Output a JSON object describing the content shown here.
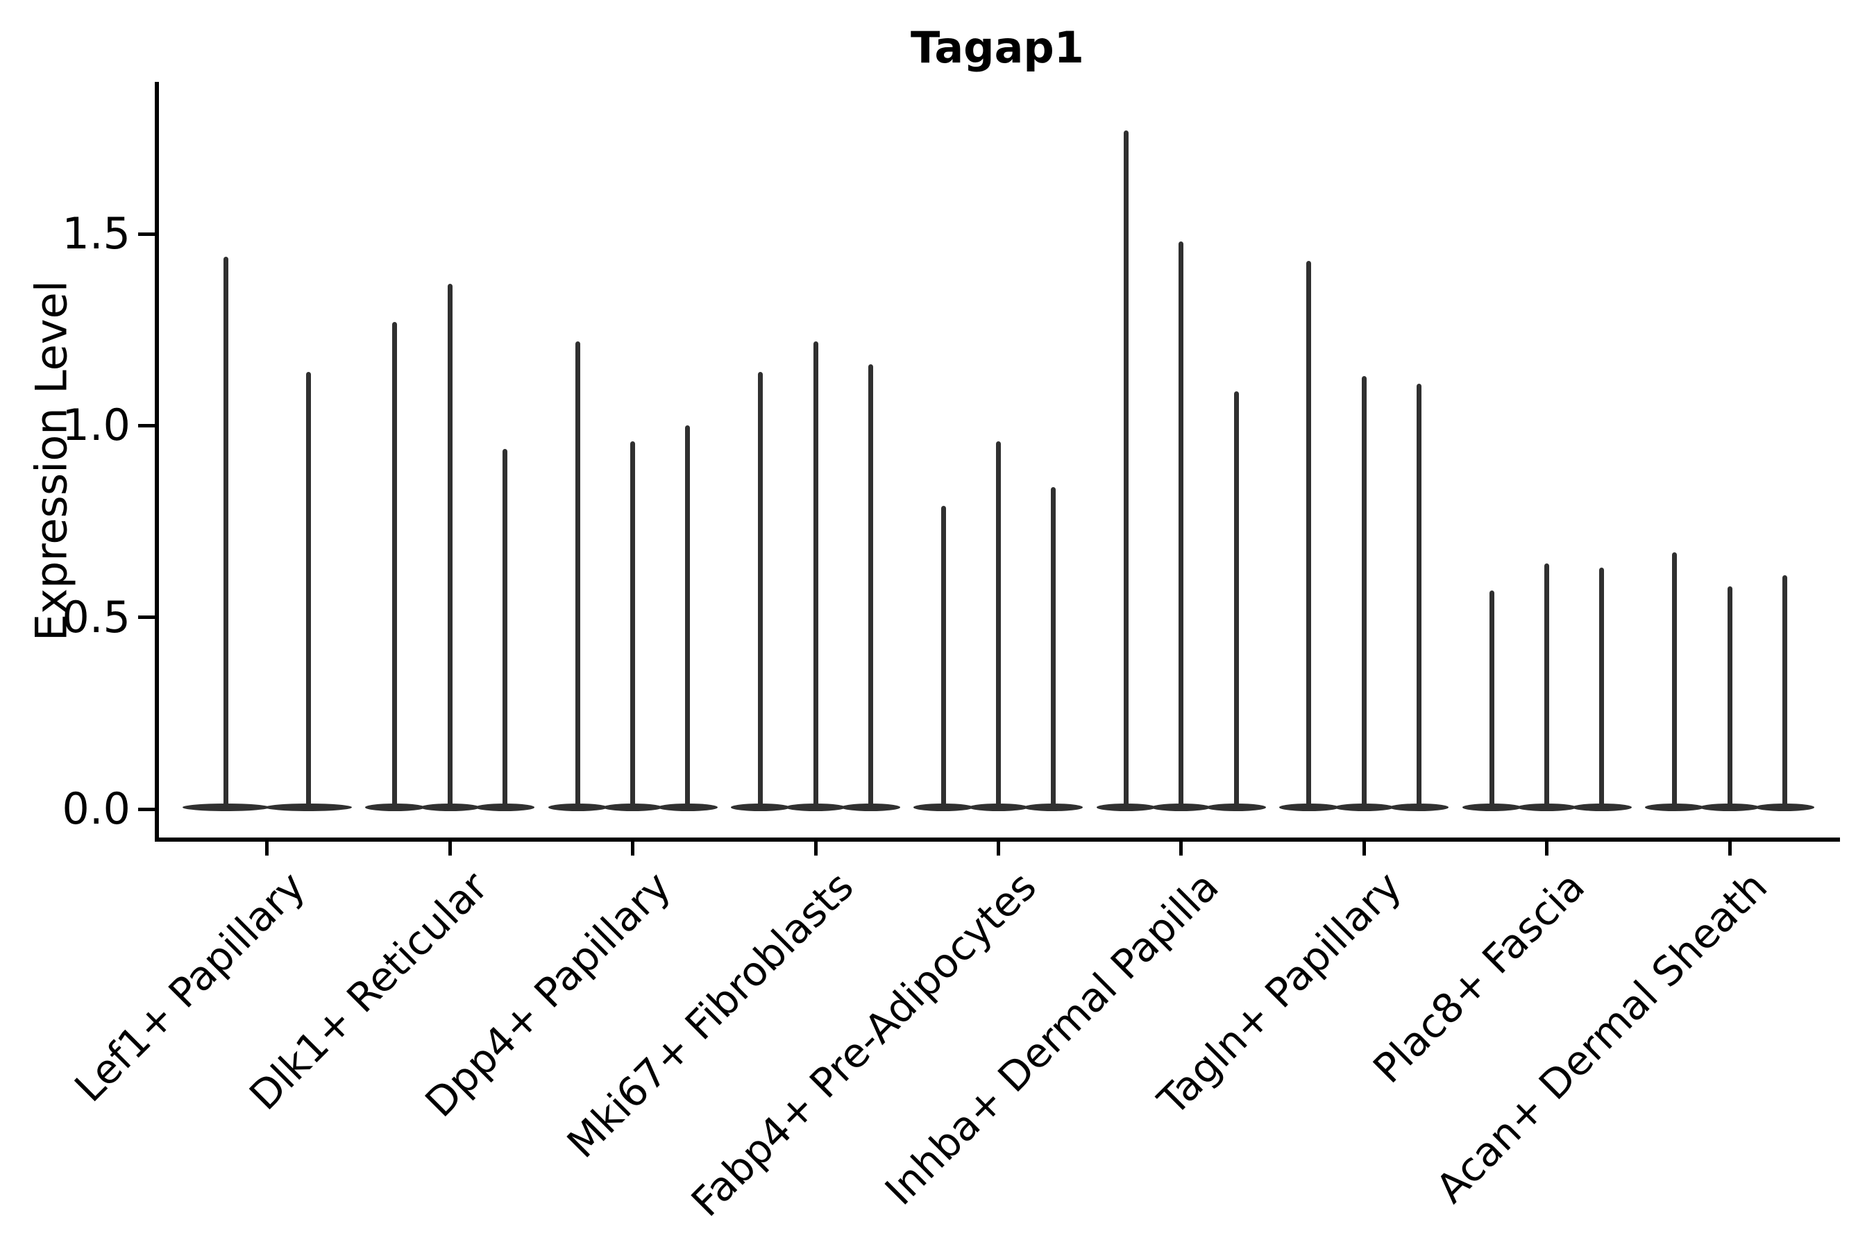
{
  "title": "Tagap1",
  "y_axis": {
    "label": "Expression Level",
    "tick_labels": [
      "0.0",
      "0.5",
      "1.0",
      "1.5"
    ]
  },
  "colors": {
    "violin": "#303030",
    "axis": "#000000",
    "text": "#000000"
  },
  "chart_data": {
    "type": "violin",
    "title": "Tagap1",
    "xlabel": "",
    "ylabel": "Expression Level",
    "ylim": [
      0,
      1.9
    ],
    "yticks": [
      0.0,
      0.5,
      1.0,
      1.5
    ],
    "ytick_labels": [
      "0.0",
      "0.5",
      "1.0",
      "1.5"
    ],
    "grid": false,
    "legend": "none",
    "x_tick_rotation_deg": 45,
    "description": "Needle-thin violins (sparse single-cell expression, bulk of density at 0 shown as a flat lens on the baseline; spike reaches the max expression value). 2-3 violins per category.",
    "categories": [
      "Lef1+ Papillary",
      "Dlk1+ Reticular",
      "Dpp4+ Papillary",
      "Mki67+ Fibroblasts",
      "Fabp4+ Pre-Adipocytes",
      "Inhba+ Dermal Papilla",
      "Tagln+ Papillary",
      "Plac8+ Fascia",
      "Acan+ Dermal Sheath"
    ],
    "series": [
      {
        "category": "Lef1+ Papillary",
        "violin_max_values": [
          1.44,
          1.14
        ]
      },
      {
        "category": "Dlk1+ Reticular",
        "violin_max_values": [
          1.27,
          1.37,
          0.94
        ]
      },
      {
        "category": "Dpp4+ Papillary",
        "violin_max_values": [
          1.22,
          0.96,
          1.0
        ]
      },
      {
        "category": "Mki67+ Fibroblasts",
        "violin_max_values": [
          1.14,
          1.22,
          1.16
        ]
      },
      {
        "category": "Fabp4+ Pre-Adipocytes",
        "violin_max_values": [
          0.79,
          0.96,
          0.84
        ]
      },
      {
        "category": "Inhba+ Dermal Papilla",
        "violin_max_values": [
          1.77,
          1.48,
          1.09
        ]
      },
      {
        "category": "Tagln+ Papillary",
        "violin_max_values": [
          1.43,
          1.13,
          1.11
        ]
      },
      {
        "category": "Plac8+ Fascia",
        "violin_max_values": [
          0.57,
          0.64,
          0.63
        ]
      },
      {
        "category": "Acan+ Dermal Sheath",
        "violin_max_values": [
          0.67,
          0.58,
          0.61
        ]
      }
    ]
  }
}
